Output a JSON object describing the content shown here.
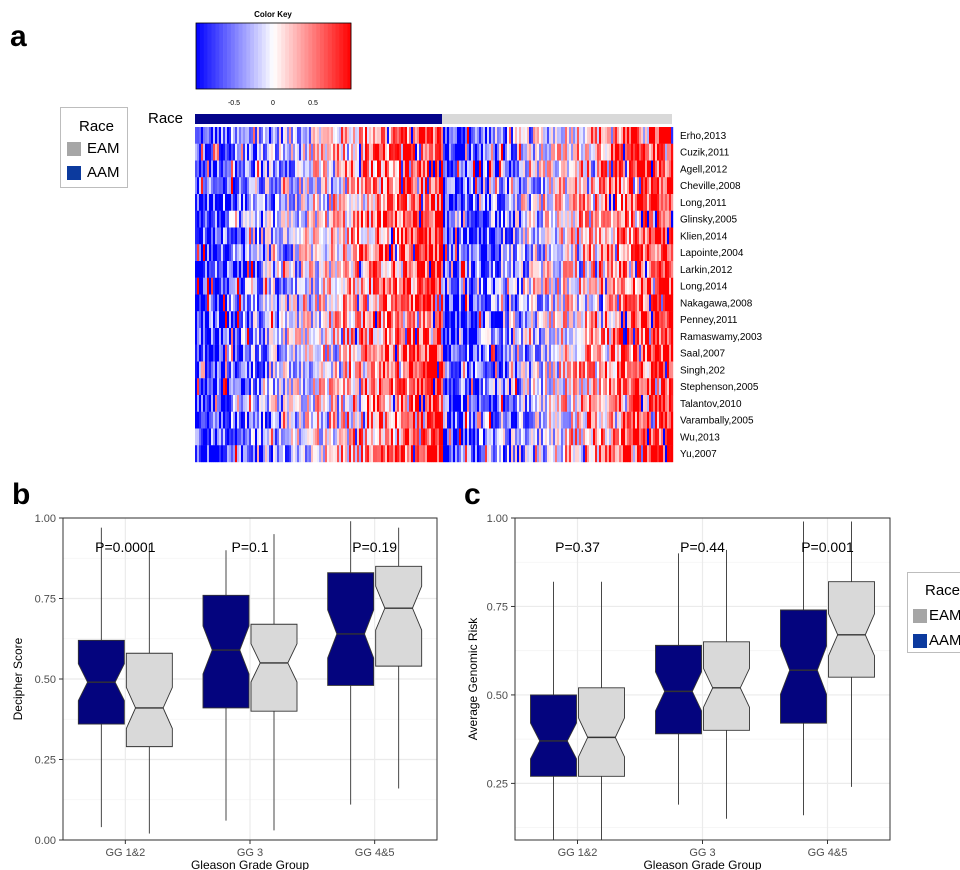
{
  "panels": {
    "a": "a",
    "b": "b",
    "c": "c"
  },
  "race_legend": {
    "title": "Race",
    "items": [
      {
        "label": "EAM",
        "color": "#a6a6a6"
      },
      {
        "label": "AAM",
        "color": "#0c3a9e"
      }
    ]
  },
  "heatmap": {
    "race_label": "Race",
    "color_key": {
      "title": "Color Key",
      "ticks": [
        "-0.5",
        "0",
        "0.5"
      ],
      "low_color": "#0000ff",
      "mid_color": "#ffffff",
      "high_color": "#ff0000"
    },
    "race_bar_colors": {
      "AAM": "#04048a",
      "EAM": "#d9d9d9"
    },
    "rows": [
      "Erho,2013",
      "Cuzik,2011",
      "Agell,2012",
      "Cheville,2008",
      "Long,2011",
      "Glinsky,2005",
      "Klien,2014",
      "Lapointe,2004",
      "Larkin,2012",
      "Long,2014",
      "Nakagawa,2008",
      "Penney,2011",
      "Ramaswamy,2003",
      "Saal,2007",
      "Singh,202",
      "Stephenson,2005",
      "Talantov,2010",
      "Varambally,2005",
      "Wu,2013",
      "Yu,2007"
    ]
  },
  "colors": {
    "aam_box": "#04047e",
    "eam_box": "#d9d9d9",
    "grid": "#ebebeb",
    "frame": "#333333"
  },
  "chart_data": [
    {
      "type": "boxplot",
      "panel": "b",
      "xlabel": "Gleason Grade Group",
      "ylabel": "Decipher Score",
      "categories": [
        "GG 1&2",
        "GG 3",
        "GG 4&5"
      ],
      "ylim": [
        0.0,
        1.0
      ],
      "yticks": [
        "0.00",
        "0.25",
        "0.50",
        "0.75",
        "1.00"
      ],
      "pvalues": [
        "P=0.0001",
        "P=0.1",
        "P=0.19"
      ],
      "series": [
        {
          "name": "AAM",
          "boxes": [
            {
              "min": 0.04,
              "q1": 0.36,
              "median": 0.49,
              "q3": 0.62,
              "max": 0.97
            },
            {
              "min": 0.06,
              "q1": 0.41,
              "median": 0.59,
              "q3": 0.76,
              "max": 0.9
            },
            {
              "min": 0.11,
              "q1": 0.48,
              "median": 0.64,
              "q3": 0.83,
              "max": 0.99
            }
          ]
        },
        {
          "name": "EAM",
          "boxes": [
            {
              "min": 0.02,
              "q1": 0.29,
              "median": 0.41,
              "q3": 0.58,
              "max": 0.92
            },
            {
              "min": 0.03,
              "q1": 0.4,
              "median": 0.55,
              "q3": 0.67,
              "max": 0.95
            },
            {
              "min": 0.16,
              "q1": 0.54,
              "median": 0.72,
              "q3": 0.85,
              "max": 0.97
            }
          ]
        }
      ]
    },
    {
      "type": "boxplot",
      "panel": "c",
      "xlabel": "Gleason Grade Group",
      "ylabel": "Average Genomic Risk",
      "categories": [
        "GG 1&2",
        "GG 3",
        "GG 4&5"
      ],
      "ylim": [
        0.09,
        1.0
      ],
      "yticks": [
        "0.25",
        "0.50",
        "0.75",
        "1.00"
      ],
      "pvalues": [
        "P=0.37",
        "P=0.44",
        "P=0.001"
      ],
      "series": [
        {
          "name": "AAM",
          "boxes": [
            {
              "min": 0.09,
              "q1": 0.27,
              "median": 0.37,
              "q3": 0.5,
              "max": 0.82
            },
            {
              "min": 0.19,
              "q1": 0.39,
              "median": 0.51,
              "q3": 0.64,
              "max": 0.9
            },
            {
              "min": 0.16,
              "q1": 0.42,
              "median": 0.57,
              "q3": 0.74,
              "max": 0.99
            }
          ]
        },
        {
          "name": "EAM",
          "boxes": [
            {
              "min": 0.09,
              "q1": 0.27,
              "median": 0.38,
              "q3": 0.52,
              "max": 0.82
            },
            {
              "min": 0.15,
              "q1": 0.4,
              "median": 0.52,
              "q3": 0.65,
              "max": 0.91
            },
            {
              "min": 0.24,
              "q1": 0.55,
              "median": 0.67,
              "q3": 0.82,
              "max": 0.99
            }
          ]
        }
      ]
    }
  ]
}
